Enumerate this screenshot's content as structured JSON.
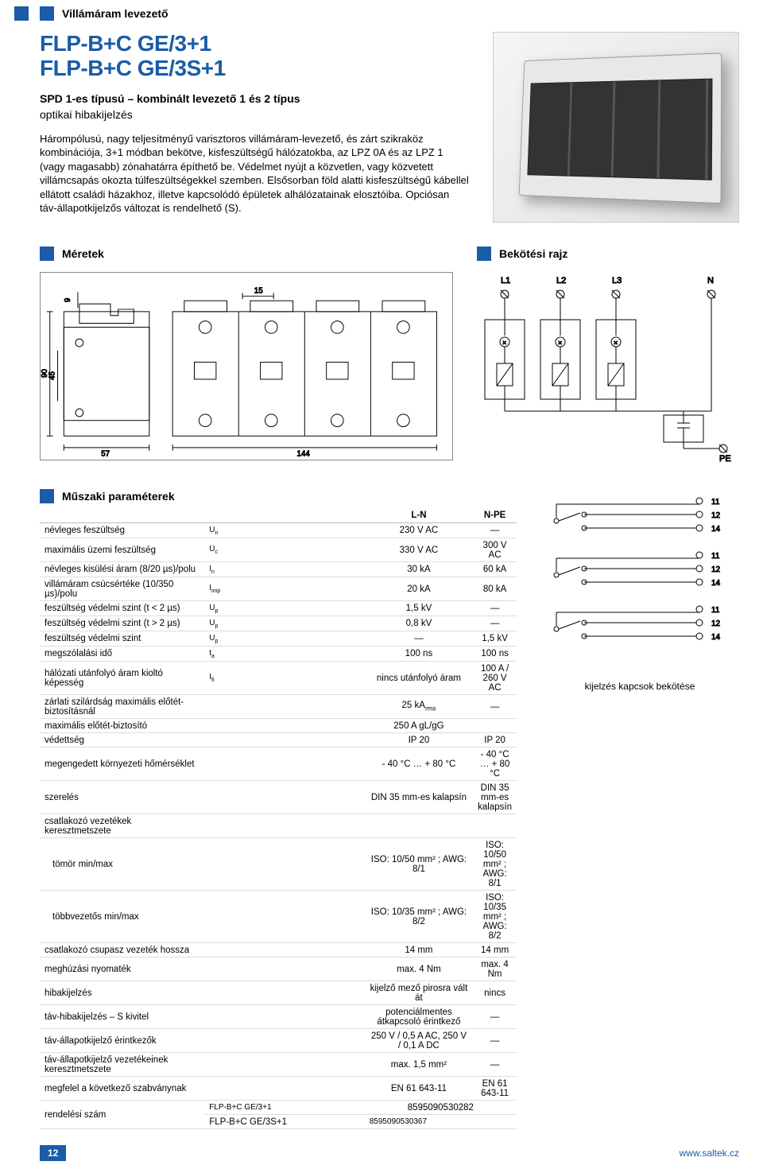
{
  "category": "Villámáram levezető",
  "title_line1": "FLP-B+C GE/3+1",
  "title_line2": "FLP-B+C GE/3S+1",
  "subtitle_bold": "SPD 1-es típusú – kombinált levezető 1 és 2 típus",
  "subtitle_plain": "optikai hibakijelzés",
  "body": "Hárompólusú, nagy teljesítményű varisztoros villámáram-levezető, és zárt szikraköz kombinációja, 3+1 módban bekötve, kisfeszültségű hálózatokba, az LPZ 0A és az LPZ 1 (vagy magasabb) zónahatárra építhető be. Védelmet nyújt a közvetlen, vagy közvetett villámcsapás okozta túlfeszültségekkel szemben. Elsősorban föld alatti kisfeszültségű kábellel ellátott családi házakhoz, illetve kapcsolódó épületek alhálózatainak elosztóiba. Opciósan táv-állapotkijelzős változat is rendelhető (S).",
  "sections": {
    "dimensions": "Méretek",
    "wiring": "Bekötési rajz",
    "specs": "Műszaki paraméterek"
  },
  "dimensions_svg": {
    "w_top": "15",
    "h_side": "9",
    "h_total": "90",
    "h_mid": "45",
    "w_left": "57",
    "w_right": "144",
    "stroke": "#000000",
    "fill": "#ffffff"
  },
  "wiring_svg": {
    "labels": [
      "L1",
      "L2",
      "L3",
      "N"
    ],
    "pe": "PE",
    "stroke": "#000000"
  },
  "specs": {
    "headers": [
      "L-N",
      "N-PE"
    ],
    "rows": [
      {
        "label": "névleges feszültség",
        "sym": "U<sub>n</sub>",
        "ln": "230 V AC",
        "npe": "—"
      },
      {
        "label": "maximális üzemi feszültség",
        "sym": "U<sub>c</sub>",
        "ln": "330 V AC",
        "npe": "300 V AC"
      },
      {
        "label": "névleges kisülési áram (8/20 µs)/polu",
        "sym": "I<sub>n</sub>",
        "ln": "30 kA",
        "npe": "60 kA"
      },
      {
        "label": "villámáram csúcsértéke (10/350 µs)/polu",
        "sym": "I<sub>imp</sub>",
        "ln": "20 kA",
        "npe": "80 kA"
      },
      {
        "label": "feszültség védelmi szint  (t < 2 µs)",
        "sym": "U<sub>p</sub>",
        "ln": "1,5 kV",
        "npe": "—"
      },
      {
        "label": "feszültség védelmi szint  (t > 2 µs)",
        "sym": "U<sub>p</sub>",
        "ln": "0,8 kV",
        "npe": "—"
      },
      {
        "label": "feszültség védelmi szint",
        "sym": "U<sub>p</sub>",
        "ln": "—",
        "npe": "1,5 kV"
      },
      {
        "label": "megszólalási idő",
        "sym": "t<sub>a</sub>",
        "ln": "100 ns",
        "npe": "100 ns"
      },
      {
        "label": "hálózati utánfolyó áram kioltó képesség",
        "sym": "I<sub>fi</sub>",
        "ln": "nincs utánfolyó áram",
        "npe": "100 A / 260 V AC"
      },
      {
        "label": "zárlati szilárdság maximális előtét-biztosításnál",
        "sym": "",
        "ln": "25 kA<sub>rms</sub>",
        "npe": "—"
      },
      {
        "label": "maximális előtét-biztosító",
        "sym": "",
        "ln": "250 A gL/gG",
        "npe": ""
      },
      {
        "label": "védettség",
        "sym": "",
        "ln": "IP 20",
        "npe": "IP 20"
      },
      {
        "label": "megengedett környezeti hőmérséklet",
        "sym": "",
        "ln": "- 40 °C  … + 80 °C",
        "npe": "- 40 °C  … + 80 °C"
      },
      {
        "label": "szerelés",
        "sym": "",
        "ln": "DIN 35 mm-es kalapsín",
        "npe": "DIN 35 mm-es kalapsín"
      },
      {
        "label": "csatlakozó vezetékek keresztmetszete",
        "sym": "",
        "ln": "",
        "npe": ""
      },
      {
        "label": "tömör min/max",
        "sym": "",
        "ln": "ISO: 10/50 mm² ; AWG: 8/1",
        "npe": "ISO: 10/50 mm² ; AWG: 8/1",
        "indent": true
      },
      {
        "label": "többvezetős min/max",
        "sym": "",
        "ln": "ISO: 10/35 mm² ; AWG: 8/2",
        "npe": "ISO: 10/35 mm² ; AWG: 8/2",
        "indent": true
      },
      {
        "label": "csatlakozó csupasz vezeték hossza",
        "sym": "",
        "ln": "14 mm",
        "npe": "14 mm"
      },
      {
        "label": "meghúzási nyomaték",
        "sym": "",
        "ln": "max. 4 Nm",
        "npe": "max. 4 Nm"
      },
      {
        "label": "hibakijelzés",
        "sym": "",
        "ln": "kijelző mező pirosra vált át",
        "npe": "nincs"
      },
      {
        "label": "táv-hibakijelzés – S kivitel",
        "sym": "",
        "ln": "potenciálmentes átkapcsoló érintkező",
        "npe": "—"
      },
      {
        "label": "táv-állapotkijelző érintkezők",
        "sym": "",
        "ln": "250 V / 0,5 A AC, 250 V / 0,1 A DC",
        "npe": "—"
      },
      {
        "label": "táv-állapotkijelző vezetékeinek keresztmetszete",
        "sym": "",
        "ln": "max. 1,5 mm²",
        "npe": "—"
      },
      {
        "label": "megfelel a következő szabványnak",
        "sym": "",
        "ln": "EN 61 643-11",
        "npe": "EN 61 643-11"
      }
    ],
    "order_label": "rendelési szám",
    "order_rows": [
      {
        "model": "FLP-B+C GE/3+1",
        "code": "8595090530282"
      },
      {
        "model": "FLP-B+C GE/3S+1",
        "code": "8595090530367"
      }
    ]
  },
  "signal": {
    "terminals": [
      "11",
      "12",
      "14"
    ],
    "caption": "kijelzés kapcsok bekötése"
  },
  "footer": {
    "page": "12",
    "url": "www.saltek.cz"
  }
}
